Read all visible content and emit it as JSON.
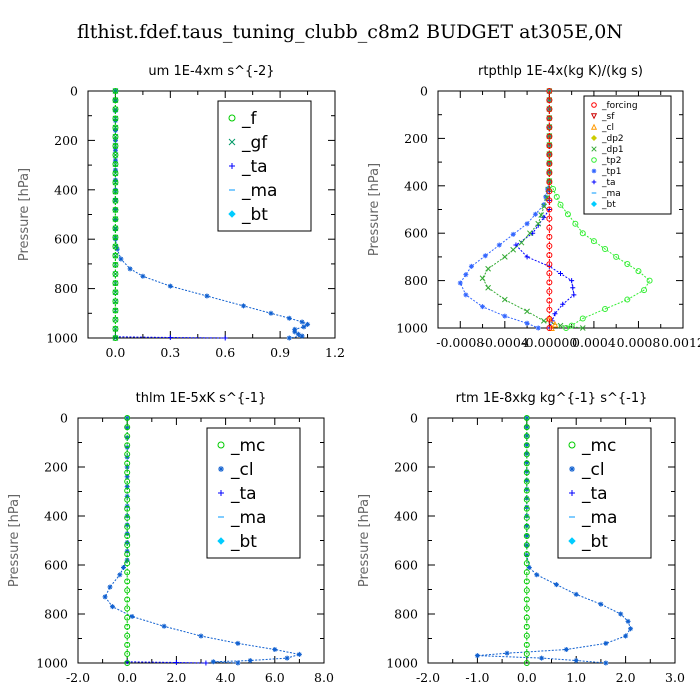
{
  "figure_title": "flthist.fdef.taus_tuning_clubb_c8m2  BUDGET at305E,0N",
  "chart_data": [
    {
      "type": "line",
      "title": "um   1E-4xm s^{-2}",
      "ylabel": "Pressure [hPa]",
      "xlim": [
        -0.15,
        1.2
      ],
      "ylim": [
        0,
        1000
      ],
      "y_inverted": true,
      "xticks": [
        0,
        0.3,
        0.6,
        0.9,
        1.2
      ],
      "xtick_labels": [
        "0.0",
        "0.3",
        "0.6",
        "0.9",
        "1.2"
      ],
      "yticks": [
        0,
        200,
        400,
        600,
        800,
        1000
      ],
      "ytick_labels": [
        "0",
        "200",
        "400",
        "600",
        "800",
        "1000"
      ],
      "legend_placement": "top-right",
      "legend_size": "large",
      "series": [
        {
          "name": "_f",
          "color": "#00cc00",
          "marker": "circle",
          "points": [
            [
              0,
              0
            ],
            [
              0,
              1000
            ]
          ]
        },
        {
          "name": "_gf",
          "color": "#009966",
          "marker": "x",
          "points": [
            [
              0,
              0
            ],
            [
              0,
              1000
            ]
          ]
        },
        {
          "name": "_ta",
          "color": "#0000ff",
          "marker": "plus",
          "points": []
        },
        {
          "name": "_ma",
          "color": "#0099ff",
          "marker": "dash",
          "points": []
        },
        {
          "name": "_bt",
          "color": "#00ccff",
          "marker": "diamond",
          "points": []
        }
      ],
      "extra_lines": [
        {
          "color": "#1060d0",
          "marker": "star",
          "points": [
            [
              0,
              0
            ],
            [
              0,
              200
            ],
            [
              0,
              400
            ],
            [
              0,
              600
            ],
            [
              0.01,
              640
            ],
            [
              0.03,
              680
            ],
            [
              0.08,
              720
            ],
            [
              0.15,
              750
            ],
            [
              0.3,
              790
            ],
            [
              0.5,
              830
            ],
            [
              0.7,
              870
            ],
            [
              0.85,
              900
            ],
            [
              0.95,
              920
            ],
            [
              1.02,
              935
            ],
            [
              1.05,
              945
            ],
            [
              1.03,
              955
            ],
            [
              0.98,
              965
            ],
            [
              0.98,
              975
            ],
            [
              1.0,
              985
            ],
            [
              1.02,
              992
            ],
            [
              0.95,
              1000
            ]
          ]
        },
        {
          "color": "#0000ff",
          "marker": "plus",
          "points": [
            [
              0,
              995
            ],
            [
              0.3,
              998
            ],
            [
              0.6,
              1000
            ]
          ]
        }
      ]
    },
    {
      "type": "line",
      "title": "rtpthlp   1E-4x(kg K)/(kg s)",
      "ylabel": "Pressure [hPa]",
      "xlim": [
        -0.001,
        0.0012
      ],
      "ylim": [
        0,
        1000
      ],
      "y_inverted": true,
      "xticks": [
        -0.0008,
        -0.0004,
        0,
        0.0004,
        0.0008,
        0.0012
      ],
      "xtick_labels": [
        "-0.0008",
        "-0.0004",
        "-0.00000",
        "0.0004",
        "0.0008",
        "0.0012"
      ],
      "yticks": [
        0,
        200,
        400,
        600,
        800,
        1000
      ],
      "ytick_labels": [
        "0",
        "200",
        "400",
        "600",
        "800",
        "1000"
      ],
      "legend_placement": "top-right",
      "legend_size": "small",
      "series": [
        {
          "name": "_forcing",
          "color": "#ff0000",
          "marker": "circle",
          "points": [
            [
              0,
              0
            ],
            [
              0,
              1000
            ]
          ]
        },
        {
          "name": "_sf",
          "color": "#cc0000",
          "marker": "triangle-down",
          "points": []
        },
        {
          "name": "_cl",
          "color": "#ff9900",
          "marker": "triangle",
          "points": [
            [
              0,
              960
            ],
            [
              5e-05,
              985
            ],
            [
              2e-05,
              1000
            ]
          ]
        },
        {
          "name": "_dp2",
          "color": "#cccc00",
          "marker": "diamond",
          "points": []
        },
        {
          "name": "_dp1",
          "color": "#33aa33",
          "marker": "x",
          "points": [
            [
              0,
              0
            ],
            [
              0,
              380
            ],
            [
              -2e-05,
              450
            ],
            [
              -0.0001,
              560
            ],
            [
              -0.00025,
              640
            ],
            [
              -0.0004,
              700
            ],
            [
              -0.00055,
              750
            ],
            [
              -0.0006,
              790
            ],
            [
              -0.00055,
              830
            ],
            [
              -0.0004,
              880
            ],
            [
              -0.0002,
              930
            ],
            [
              -5e-05,
              970
            ],
            [
              0.0001,
              990
            ],
            [
              0.0003,
              1000
            ]
          ]
        },
        {
          "name": "_tp2",
          "color": "#33ee33",
          "marker": "circle",
          "points": [
            [
              0,
              0
            ],
            [
              0,
              380
            ],
            [
              0.0001,
              480
            ],
            [
              0.0003,
              600
            ],
            [
              0.0006,
              700
            ],
            [
              0.0008,
              760
            ],
            [
              0.0009,
              800
            ],
            [
              0.00085,
              840
            ],
            [
              0.0007,
              880
            ],
            [
              0.0005,
              920
            ],
            [
              0.0003,
              960
            ],
            [
              0.0002,
              990
            ],
            [
              0.00015,
              1000
            ]
          ]
        },
        {
          "name": "_tp1",
          "color": "#3366ff",
          "marker": "star",
          "points": [
            [
              0,
              0
            ],
            [
              0,
              380
            ],
            [
              -5e-05,
              480
            ],
            [
              -0.0002,
              560
            ],
            [
              -0.00045,
              650
            ],
            [
              -0.0007,
              740
            ],
            [
              -0.0008,
              810
            ],
            [
              -0.00075,
              860
            ],
            [
              -0.0006,
              910
            ],
            [
              -0.0004,
              950
            ],
            [
              -0.0002,
              980
            ],
            [
              -0.0001,
              1000
            ]
          ]
        },
        {
          "name": "_ta",
          "color": "#0000ff",
          "marker": "plus",
          "points": [
            [
              0,
              0
            ],
            [
              0,
              500
            ],
            [
              -0.00015,
              600
            ],
            [
              -0.0003,
              650
            ],
            [
              -0.0002,
              700
            ],
            [
              0,
              740
            ],
            [
              0.0002,
              800
            ],
            [
              0.00022,
              860
            ],
            [
              0.00012,
              900
            ],
            [
              5e-05,
              940
            ],
            [
              0,
              1000
            ]
          ]
        },
        {
          "name": "_ma",
          "color": "#0099ff",
          "marker": "dash",
          "points": []
        },
        {
          "name": "_bt",
          "color": "#00ccff",
          "marker": "diamond",
          "points": []
        }
      ],
      "extra_lines": []
    },
    {
      "type": "line",
      "title": "thlm   1E-5xK s^{-1}",
      "ylabel": "Pressure [hPa]",
      "xlim": [
        -2.0,
        8.0
      ],
      "ylim": [
        0,
        1000
      ],
      "y_inverted": true,
      "xticks": [
        -2,
        0,
        2,
        4,
        6,
        8
      ],
      "xtick_labels": [
        "-2.0",
        "0.0",
        "2.0",
        "4.0",
        "6.0",
        "8.0"
      ],
      "yticks": [
        0,
        200,
        400,
        600,
        800,
        1000
      ],
      "ytick_labels": [
        "0",
        "200",
        "400",
        "600",
        "800",
        "1000"
      ],
      "legend_placement": "top-right",
      "legend_size": "large",
      "series": [
        {
          "name": "_mc",
          "color": "#00cc00",
          "marker": "circle",
          "points": [
            [
              0,
              0
            ],
            [
              0,
              1000
            ]
          ]
        },
        {
          "name": "_cl",
          "color": "#1060d0",
          "marker": "star",
          "points": [
            [
              0,
              0
            ],
            [
              0,
              200
            ],
            [
              0,
              400
            ],
            [
              0,
              580
            ],
            [
              -0.3,
              640
            ],
            [
              -0.7,
              690
            ],
            [
              -0.9,
              730
            ],
            [
              -0.6,
              770
            ],
            [
              0.2,
              810
            ],
            [
              1.5,
              850
            ],
            [
              3.0,
              890
            ],
            [
              4.5,
              920
            ],
            [
              6.0,
              945
            ],
            [
              7.0,
              965
            ],
            [
              6.5,
              980
            ],
            [
              5.0,
              990
            ],
            [
              3.5,
              995
            ],
            [
              4.5,
              1000
            ]
          ]
        },
        {
          "name": "_ta",
          "color": "#0000ff",
          "marker": "plus",
          "points": [
            [
              0,
              995
            ],
            [
              2.0,
              998
            ],
            [
              3.2,
              1000
            ]
          ]
        },
        {
          "name": "_ma",
          "color": "#0099ff",
          "marker": "dash",
          "points": []
        },
        {
          "name": "_bt",
          "color": "#00ccff",
          "marker": "diamond",
          "points": []
        }
      ],
      "extra_lines": []
    },
    {
      "type": "line",
      "title": "rtm   1E-8xkg kg^{-1} s^{-1}",
      "ylabel": "Pressure [hPa]",
      "xlim": [
        -2.0,
        3.0
      ],
      "ylim": [
        0,
        1000
      ],
      "y_inverted": true,
      "xticks": [
        -2,
        -1,
        0,
        1,
        2,
        3
      ],
      "xtick_labels": [
        "-2.0",
        "-1.0",
        "0.0",
        "1.0",
        "2.0",
        "3.0"
      ],
      "yticks": [
        0,
        200,
        400,
        600,
        800,
        1000
      ],
      "ytick_labels": [
        "0",
        "200",
        "400",
        "600",
        "800",
        "1000"
      ],
      "legend_placement": "top-right",
      "legend_size": "large",
      "series": [
        {
          "name": "_mc",
          "color": "#00cc00",
          "marker": "circle",
          "points": [
            [
              0,
              0
            ],
            [
              0,
              1000
            ]
          ]
        },
        {
          "name": "_cl",
          "color": "#1060d0",
          "marker": "star",
          "points": [
            [
              0,
              0
            ],
            [
              0,
              400
            ],
            [
              0,
              560
            ],
            [
              0.05,
              610
            ],
            [
              0.2,
              640
            ],
            [
              0.6,
              680
            ],
            [
              1.0,
              720
            ],
            [
              1.5,
              760
            ],
            [
              1.9,
              800
            ],
            [
              2.05,
              830
            ],
            [
              2.1,
              860
            ],
            [
              2.0,
              890
            ],
            [
              1.6,
              920
            ],
            [
              0.8,
              945
            ],
            [
              -0.4,
              960
            ],
            [
              -1.0,
              970
            ],
            [
              0.3,
              980
            ],
            [
              1.0,
              990
            ],
            [
              1.6,
              1000
            ]
          ]
        },
        {
          "name": "_ta",
          "color": "#0000ff",
          "marker": "plus",
          "points": []
        },
        {
          "name": "_ma",
          "color": "#0099ff",
          "marker": "dash",
          "points": []
        },
        {
          "name": "_bt",
          "color": "#00ccff",
          "marker": "diamond",
          "points": []
        }
      ],
      "extra_lines": []
    }
  ]
}
